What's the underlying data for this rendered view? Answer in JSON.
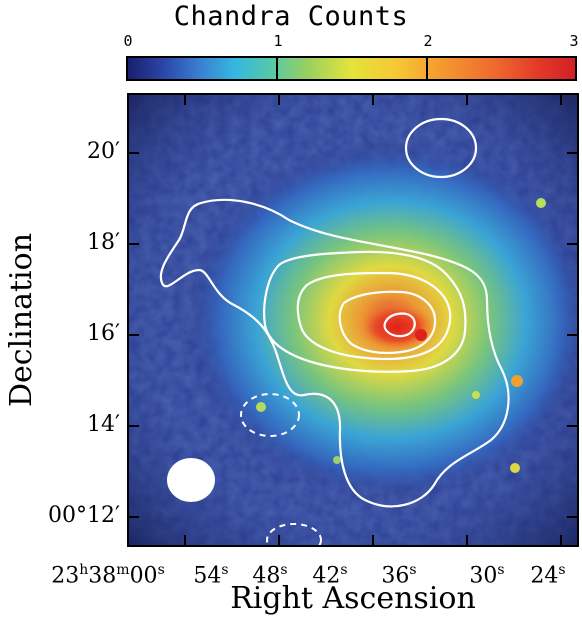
{
  "figure": {
    "title": "Chandra Counts",
    "colorbar": {
      "ticks": [
        "0",
        "1",
        "2",
        "3"
      ]
    },
    "y_axis": {
      "title": "Declination",
      "ticks": [
        {
          "label": "20′"
        },
        {
          "label": "18′"
        },
        {
          "label": "16′"
        },
        {
          "label": "14′"
        },
        {
          "label": "00°12′"
        }
      ]
    },
    "x_axis": {
      "title": "Right Ascension",
      "ticks": [
        {
          "label": "23h38m00s"
        },
        {
          "label": "54s"
        },
        {
          "label": "48s"
        },
        {
          "label": "42s"
        },
        {
          "label": "36s"
        },
        {
          "label": "30s"
        },
        {
          "label": "24s"
        }
      ]
    },
    "colors": {
      "background_low": "#2c3b8f",
      "contour": "#ffffff",
      "peak": "#e0201a"
    },
    "beam_marker": "white-ellipse"
  }
}
